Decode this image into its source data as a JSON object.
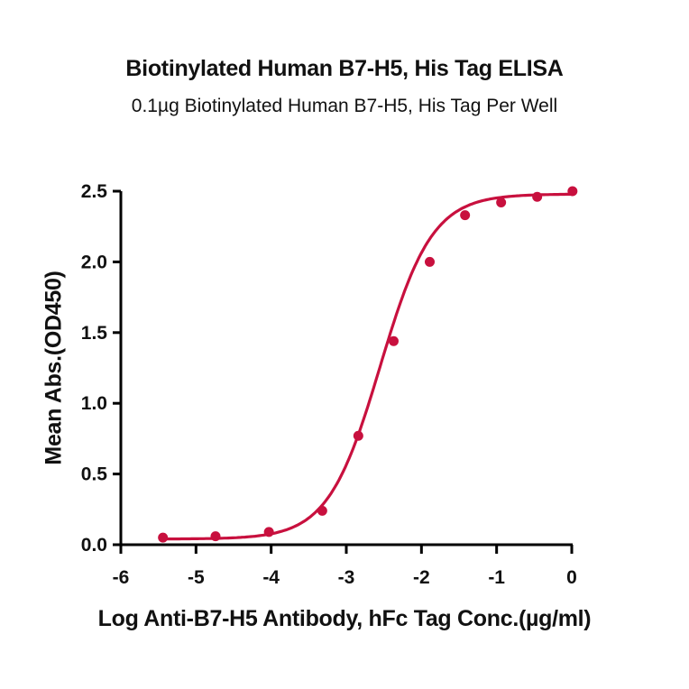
{
  "chart_data": {
    "type": "scatter",
    "title": "Biotinylated Human B7-H5, His Tag ELISA",
    "subtitle": "0.1µg Biotinylated Human B7-H5, His Tag Per Well",
    "xlabel": "Log Anti-B7-H5 Antibody, hFc Tag Conc.(µg/ml)",
    "ylabel": "Mean Abs.(OD450)",
    "xlim": [
      -6,
      0
    ],
    "ylim": [
      0,
      2.5
    ],
    "x_ticks": [
      "-6",
      "-5",
      "-4",
      "-3",
      "-2",
      "-1",
      "0"
    ],
    "y_ticks": [
      "0.0",
      "0.5",
      "1.0",
      "1.5",
      "2.0",
      "2.5"
    ],
    "grid": false,
    "legend": null,
    "color": "#C8103E",
    "fit": "4-parameter logistic curve",
    "series": [
      {
        "name": "Mean Abs.(OD450)",
        "x": [
          -5.44,
          -4.74,
          -4.03,
          -3.32,
          -2.84,
          -2.37,
          -1.89,
          -1.42,
          -0.94,
          -0.46,
          0.01
        ],
        "y": [
          0.05,
          0.06,
          0.09,
          0.24,
          0.77,
          1.44,
          2.0,
          2.33,
          2.42,
          2.46,
          2.5
        ]
      }
    ]
  }
}
